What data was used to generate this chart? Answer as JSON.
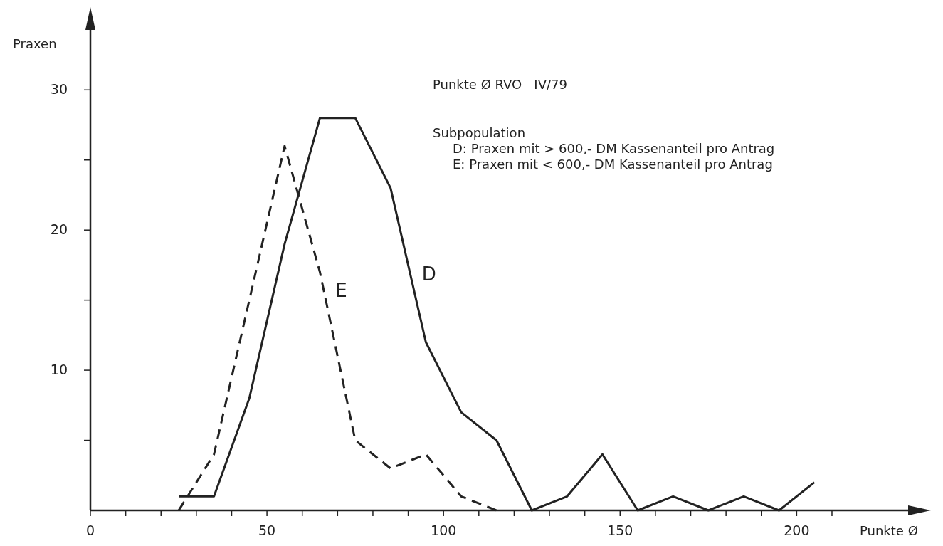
{
  "chart_data": {
    "type": "line",
    "title": "Punkte Ø RVO   IV/79",
    "xlabel": "Punkte Ø",
    "ylabel": "Praxen",
    "annotations": [
      "Subpopulation",
      "D: Praxen mit > 600,- DM Kassenanteil pro Antrag",
      "E: Praxen mit < 600,- DM Kassenanteil pro Antrag"
    ],
    "x": [
      25,
      35,
      45,
      55,
      65,
      75,
      85,
      95,
      105,
      115,
      125,
      135,
      145,
      155,
      165,
      175,
      185,
      195,
      205
    ],
    "series": [
      {
        "name": "D",
        "color": "#222222",
        "line_style": "solid",
        "values": [
          1,
          1,
          8,
          19,
          28,
          28,
          23,
          12,
          7,
          5,
          0,
          1,
          4,
          0,
          1,
          0,
          1,
          0,
          2
        ]
      },
      {
        "name": "E",
        "color": "#222222",
        "line_style": "dashed",
        "x": [
          25,
          35,
          45,
          55,
          65,
          75,
          85,
          95,
          105,
          115
        ],
        "values": [
          0,
          4,
          15,
          26,
          17,
          5,
          3,
          4,
          1,
          0
        ]
      }
    ],
    "xlim": [
      0,
      236
    ],
    "ylim": [
      0,
      35.5
    ],
    "xticks": [
      0,
      {
        "value": 10,
        "label": null
      },
      {
        "value": 20,
        "label": null
      },
      {
        "value": 30,
        "label": null
      },
      {
        "value": 40,
        "label": null
      },
      50,
      {
        "value": 60,
        "label": null
      },
      {
        "value": 70,
        "label": null
      },
      {
        "value": 80,
        "label": null
      },
      {
        "value": 90,
        "label": null
      },
      100,
      {
        "value": 110,
        "label": null
      },
      {
        "value": 120,
        "label": null
      },
      {
        "value": 130,
        "label": null
      },
      {
        "value": 140,
        "label": null
      },
      150,
      {
        "value": 160,
        "label": null
      },
      {
        "value": 170,
        "label": null
      },
      {
        "value": 180,
        "label": null
      },
      {
        "value": 190,
        "label": null
      },
      200,
      {
        "value": 210,
        "label": null
      }
    ],
    "yticks": [
      {
        "value": 5,
        "label": null
      },
      10,
      {
        "value": 15,
        "label": null
      },
      20,
      {
        "value": 25,
        "label": null
      },
      30
    ],
    "grid": false
  }
}
